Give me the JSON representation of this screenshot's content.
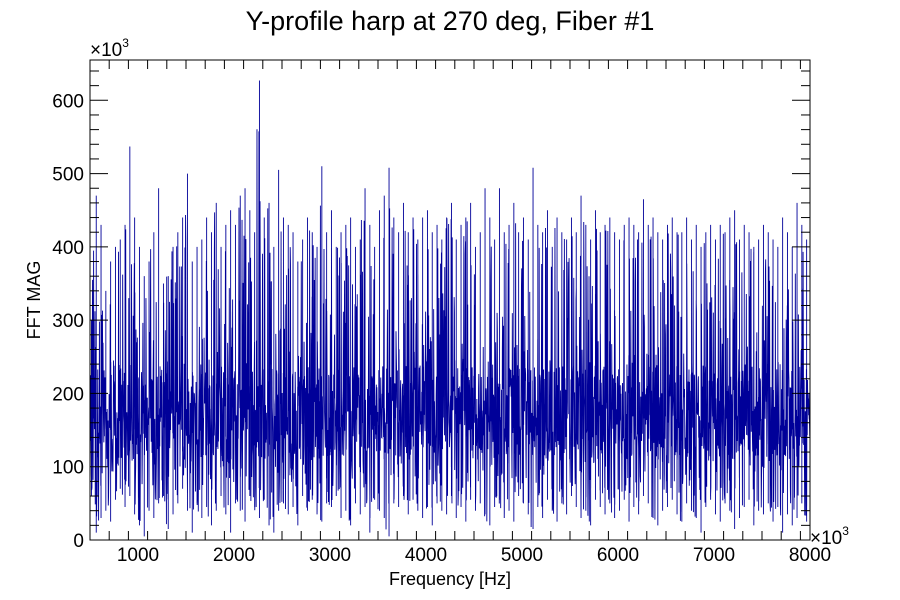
{
  "chart_data": {
    "type": "line",
    "title": "Y-profile harp at 270 deg, Fiber #1",
    "xlabel": "Frequency [Hz]",
    "ylabel": "FFT MAG",
    "x_multiplier": "×10",
    "y_multiplier": "×10",
    "multiplier_exponent": "3",
    "xlim": [
      500,
      8000
    ],
    "ylim": [
      0,
      655
    ],
    "x_ticks": [
      1000,
      2000,
      3000,
      4000,
      5000,
      6000,
      7000,
      8000
    ],
    "y_ticks": [
      0,
      100,
      200,
      300,
      400,
      500,
      600
    ],
    "grid": false,
    "line_color": "#000099",
    "series": [
      {
        "x": [
          500,
          550,
          600,
          650,
          700,
          750,
          800,
          850,
          900,
          950,
          1000,
          1050,
          1100,
          1150,
          1200,
          1250,
          1300,
          1350,
          1400,
          1450,
          1500,
          1550,
          1600,
          1650,
          1700,
          1750,
          1800,
          1850,
          1900,
          1950,
          2000,
          2050,
          2100,
          2150,
          2200,
          2250,
          2300,
          2350,
          2400,
          2450,
          2500,
          2550,
          2600,
          2650,
          2700,
          2750,
          2800,
          2850,
          2900,
          2950,
          3000,
          3050,
          3100,
          3150,
          3200,
          3250,
          3300,
          3350,
          3400,
          3450,
          3500,
          3550,
          3600,
          3650,
          3700,
          3750,
          3800,
          3850,
          3900,
          3950,
          4000,
          4050,
          4100,
          4150,
          4200,
          4250,
          4300,
          4350,
          4400,
          4450,
          4500,
          4550,
          4600,
          4650,
          4700,
          4750,
          4800,
          4850,
          4900,
          4950,
          5000,
          5050,
          5100,
          5150,
          5200,
          5250,
          5300,
          5350,
          5400,
          5450,
          5500,
          5550,
          5600,
          5650,
          5700,
          5750,
          5800,
          5850,
          5900,
          5950,
          6000,
          6050,
          6100,
          6150,
          6200,
          6250,
          6300,
          6350,
          6400,
          6450,
          6500,
          6550,
          6600,
          6650,
          6700,
          6750,
          6800,
          6850,
          6900,
          6950,
          7000,
          7050,
          7100,
          7150,
          7200,
          7250,
          7300,
          7350,
          7400,
          7450,
          7500,
          7550,
          7600,
          7650,
          7700,
          7750,
          7800,
          7850,
          7900,
          7950,
          8000
        ],
        "min": [
          60,
          10,
          30,
          40,
          25,
          55,
          70,
          45,
          60,
          35,
          20,
          5,
          40,
          30,
          50,
          60,
          15,
          35,
          50,
          70,
          40,
          10,
          50,
          30,
          45,
          20,
          40,
          60,
          35,
          10,
          50,
          40,
          25,
          60,
          45,
          30,
          55,
          20,
          10,
          40,
          50,
          35,
          45,
          20,
          60,
          40,
          55,
          35,
          25,
          50,
          45,
          60,
          30,
          40,
          20,
          50,
          35,
          45,
          10,
          55,
          40,
          30,
          5,
          50,
          45,
          60,
          35,
          55,
          40,
          30,
          45,
          20,
          50,
          40,
          35,
          60,
          30,
          45,
          25,
          55,
          40,
          50,
          35,
          20,
          45,
          55,
          30,
          40,
          25,
          60,
          50,
          35,
          15,
          45,
          30,
          55,
          40,
          25,
          50,
          35,
          60,
          45,
          30,
          40,
          20,
          55,
          45,
          35,
          50,
          30,
          40,
          55,
          25,
          45,
          35,
          60,
          50,
          30,
          20,
          40,
          45,
          55,
          35,
          25,
          50,
          40,
          30,
          10,
          45,
          55,
          35,
          25,
          50,
          40,
          15,
          30,
          45,
          55,
          20,
          40,
          35,
          50,
          25,
          45,
          10,
          35,
          20,
          30,
          50,
          25,
          60
        ],
        "max": [
          300,
          470,
          430,
          340,
          380,
          400,
          410,
          430,
          537,
          440,
          400,
          360,
          380,
          420,
          480,
          350,
          360,
          400,
          420,
          440,
          500,
          380,
          400,
          410,
          440,
          420,
          460,
          400,
          430,
          450,
          430,
          470,
          480,
          450,
          420,
          627,
          440,
          460,
          400,
          505,
          440,
          430,
          420,
          380,
          410,
          440,
          420,
          400,
          510,
          420,
          450,
          400,
          420,
          430,
          440,
          400,
          410,
          480,
          430,
          400,
          450,
          470,
          508,
          440,
          420,
          460,
          420,
          440,
          410,
          440,
          450,
          420,
          430,
          410,
          440,
          460,
          410,
          430,
          440,
          460,
          400,
          420,
          480,
          440,
          410,
          480,
          420,
          430,
          460,
          420,
          440,
          410,
          508,
          430,
          420,
          450,
          400,
          440,
          420,
          410,
          440,
          420,
          470,
          430,
          410,
          450,
          420,
          430,
          440,
          420,
          410,
          430,
          440,
          430,
          420,
          465,
          430,
          440,
          420,
          410,
          430,
          440,
          420,
          420,
          440,
          410,
          430,
          400,
          420,
          430,
          410,
          430,
          420,
          440,
          450,
          410,
          430,
          420,
          400,
          410,
          430,
          420,
          410,
          400,
          440,
          420,
          400,
          460,
          430,
          410,
          350
        ]
      }
    ]
  }
}
